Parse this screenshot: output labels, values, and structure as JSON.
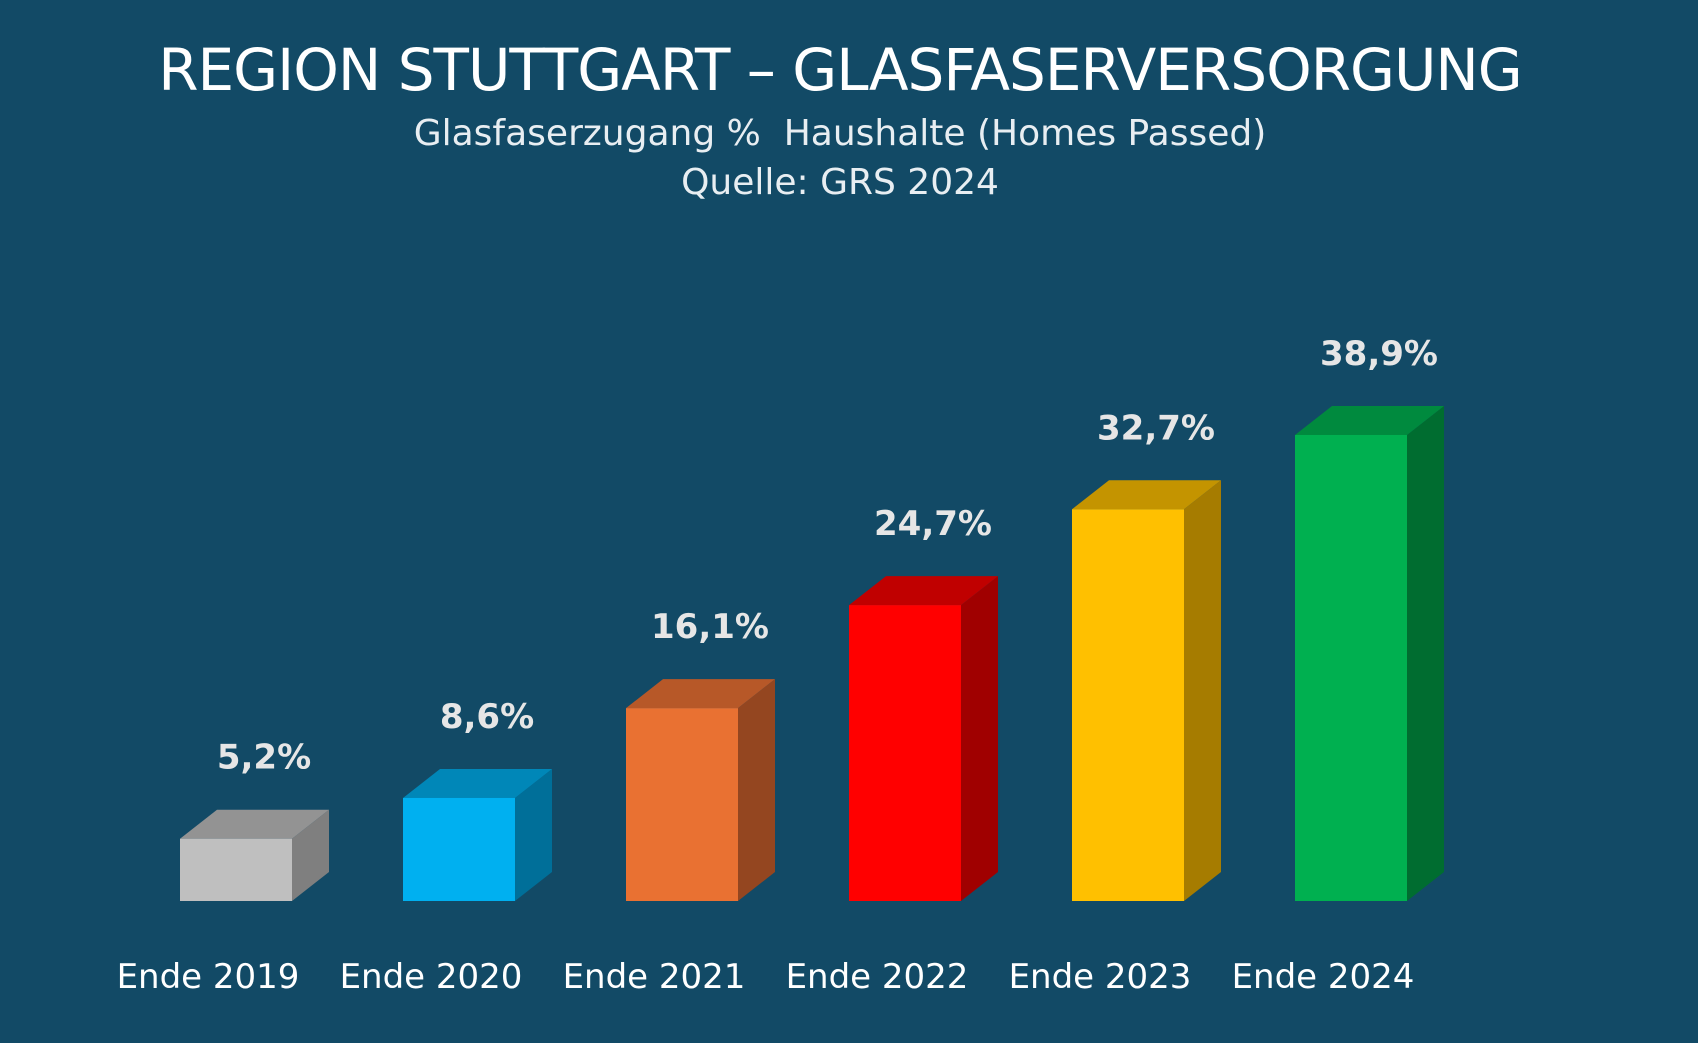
{
  "chart_data": {
    "type": "bar",
    "title": "REGION STUTTGART – GLASFASERVERSORGUNG",
    "subtitle": "Glasfaserzugang %  Haushalte (Homes Passed)",
    "source": "Quelle: GRS 2024",
    "categories": [
      "Ende 2019",
      "Ende 2020",
      "Ende 2021",
      "Ende 2022",
      "Ende 2023",
      "Ende 2024"
    ],
    "values": [
      5.2,
      8.6,
      16.1,
      24.7,
      32.7,
      38.9
    ],
    "value_labels": [
      "5,2%",
      "8,6%",
      "16,1%",
      "24,7%",
      "32,7%",
      "38,9%"
    ],
    "colors": {
      "front": [
        "#bfbfbf",
        "#00b0f0",
        "#e97132",
        "#ff0000",
        "#ffc000",
        "#00b050"
      ],
      "top": [
        "#939393",
        "#0087b8",
        "#b75828",
        "#c00000",
        "#c49400",
        "#008a3e"
      ],
      "side": [
        "#7f7f7f",
        "#006f99",
        "#944620",
        "#a00000",
        "#a67c00",
        "#006d30"
      ]
    },
    "background": "#124a66",
    "grid": false,
    "legend": "none"
  }
}
